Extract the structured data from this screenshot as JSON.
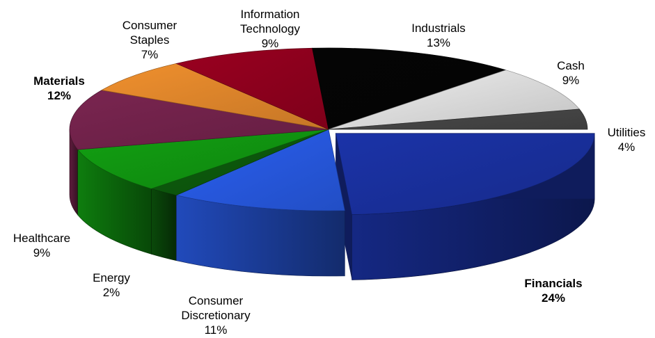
{
  "chart_data": {
    "type": "pie",
    "style": "3d-exploded",
    "legend": "none",
    "slices": [
      {
        "name": "Financials",
        "display_name": "Financials",
        "value": 24,
        "label": "24%",
        "color": "#1b33a8",
        "bold": true
      },
      {
        "name": "Consumer Discretionary",
        "display_name": "Consumer\nDiscretionary",
        "value": 11,
        "label": "11%",
        "color": "#2a5ff0",
        "bold": false
      },
      {
        "name": "Energy",
        "display_name": "Energy",
        "value": 2,
        "label": "2%",
        "color": "#0d5e0d",
        "bold": false
      },
      {
        "name": "Healthcare",
        "display_name": "Healthcare",
        "value": 9,
        "label": "9%",
        "color": "#12a012",
        "bold": false
      },
      {
        "name": "Materials",
        "display_name": "Materials",
        "value": 12,
        "label": "12%",
        "color": "#7a2550",
        "bold": true
      },
      {
        "name": "Consumer Staples",
        "display_name": "Consumer\nStaples",
        "value": 7,
        "label": "7%",
        "color": "#f0902e",
        "bold": false
      },
      {
        "name": "Information Technology",
        "display_name": "Information\nTechnology",
        "value": 9,
        "label": "9%",
        "color": "#9a0020",
        "bold": false
      },
      {
        "name": "Industrials",
        "display_name": "Industrials",
        "value": 13,
        "label": "13%",
        "color": "#050505",
        "bold": false
      },
      {
        "name": "Cash",
        "display_name": "Cash",
        "value": 9,
        "label": "9%",
        "color": "#eeeeee",
        "bold": false
      },
      {
        "name": "Utilities",
        "display_name": "Utilities",
        "value": 4,
        "label": "4%",
        "color": "#4a4a4a",
        "bold": false
      }
    ]
  }
}
